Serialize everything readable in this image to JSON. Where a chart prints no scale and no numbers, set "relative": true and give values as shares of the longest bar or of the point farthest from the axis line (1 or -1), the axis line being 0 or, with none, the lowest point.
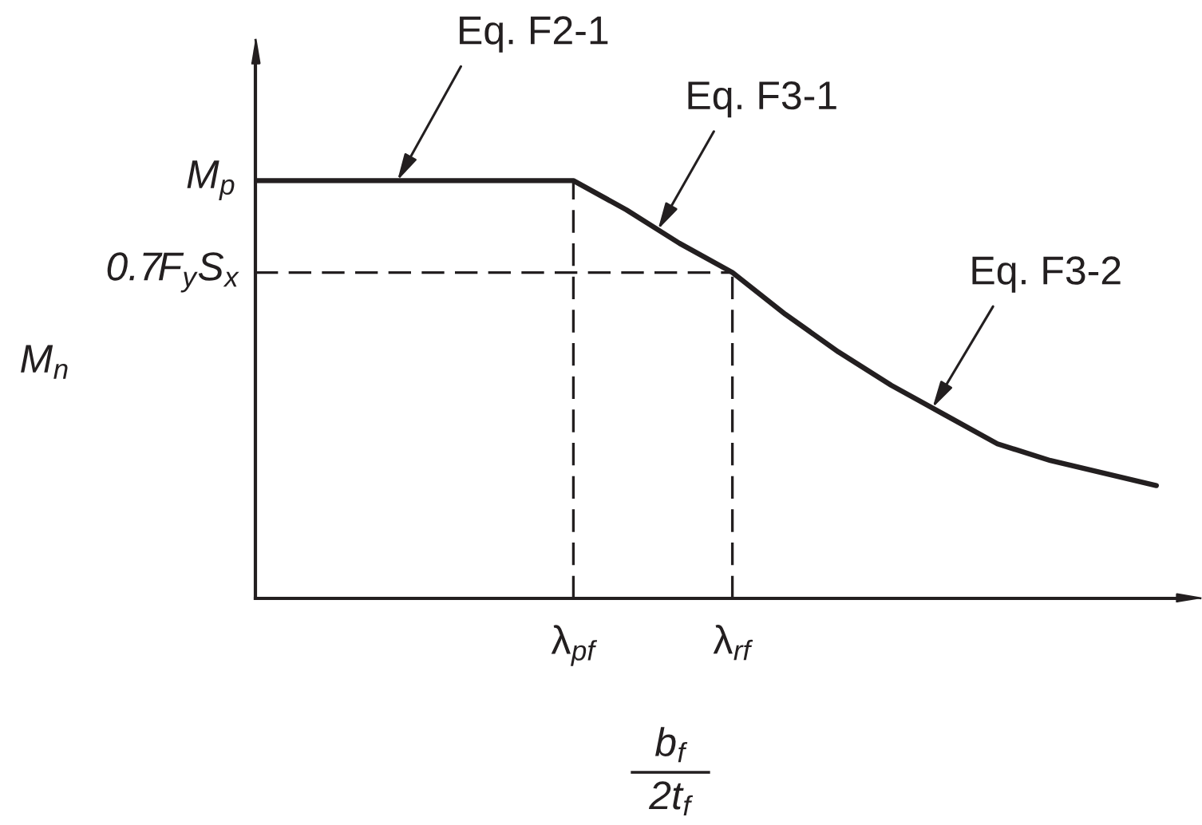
{
  "chart_data": {
    "type": "line",
    "relative": true,
    "categories": [
      null,
      null,
      null,
      null,
      null,
      null,
      "λ$_{pf}$",
      null,
      null,
      "λ$_{rf}$",
      null,
      null,
      null,
      null,
      null,
      null,
      null,
      null
    ],
    "values": [
      1,
      1,
      1,
      1,
      1,
      1,
      1,
      0.93,
      0.85,
      0.78,
      0.68,
      0.59,
      0.51,
      0.44,
      0.37,
      0.33,
      0.3,
      0.27
    ],
    "color": "#231f20",
    "xlabel": "b$_{f}$\n2t$_{f}$",
    "ylabel": "M$_{n}$",
    "ref_lines": [
      {
        "axis": "y",
        "value": 0.78,
        "label": "0.7F$_{y}$S$_{x}$",
        "line_style": "dashed",
        "color": "#231f20"
      },
      {
        "axis": "x",
        "value": "λ$_{pf}$",
        "line_style": "dashed",
        "color": "#231f20"
      },
      {
        "axis": "x",
        "value": "λ$_{rf}$",
        "line_style": "dashed",
        "color": "#231f20"
      }
    ],
    "annotations": [
      "M$_{p}$",
      "Eq. F2-1",
      "Eq. F3-1",
      "Eq. F3-2"
    ]
  }
}
